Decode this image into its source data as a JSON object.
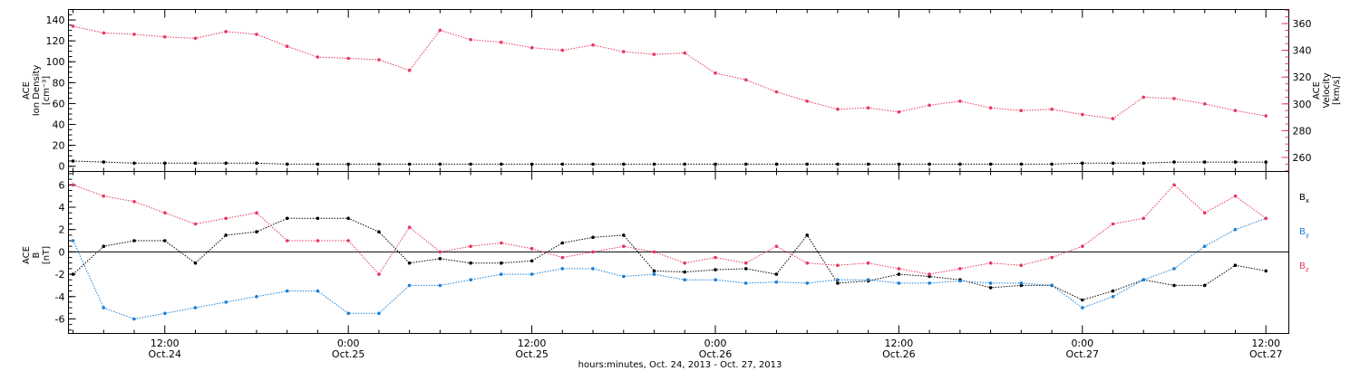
{
  "colors": {
    "black": "#000000",
    "pink": "#e8375f",
    "blue": "#1b7fd6"
  },
  "chart_data": [
    {
      "type": "scatter",
      "title": "",
      "x_unit": "hours since Oct.24 00:00 (2013)",
      "xlim": [
        5.7,
        85.5
      ],
      "ylabel_lines": [
        "ACE",
        "Ion Density",
        "[cm⁻³]"
      ],
      "ylim": [
        -5,
        150
      ],
      "yticks": [
        0,
        20,
        40,
        60,
        80,
        100,
        120,
        140
      ],
      "y2label_lines": [
        "ACE",
        "Velocity",
        "[km/s]"
      ],
      "y2lim": [
        249.5,
        370.5
      ],
      "y2ticks": [
        260,
        280,
        300,
        320,
        340,
        360
      ],
      "series": [
        {
          "name": "Ion Density",
          "axis": "left",
          "color": "#000000",
          "x": [
            6,
            8,
            10,
            12,
            14,
            16,
            18,
            20,
            22,
            24,
            26,
            28,
            30,
            32,
            34,
            36,
            38,
            40,
            42,
            44,
            46,
            48,
            50,
            52,
            54,
            56,
            58,
            60,
            62,
            64,
            66,
            68,
            70,
            72,
            74,
            76,
            78,
            80,
            82,
            84
          ],
          "y": [
            5,
            4,
            3,
            3,
            3,
            3,
            3,
            2,
            2,
            2,
            2,
            2,
            2,
            2,
            2,
            2,
            2,
            2,
            2,
            2,
            2,
            2,
            2,
            2,
            2,
            2,
            2,
            2,
            2,
            2,
            2,
            2,
            2,
            3,
            3,
            3,
            4,
            4,
            4,
            4
          ]
        },
        {
          "name": "Velocity",
          "axis": "right",
          "color": "#e8375f",
          "x": [
            6,
            8,
            10,
            12,
            14,
            16,
            18,
            20,
            22,
            24,
            26,
            28,
            30,
            32,
            34,
            36,
            38,
            40,
            42,
            44,
            46,
            48,
            50,
            52,
            54,
            56,
            58,
            60,
            62,
            64,
            66,
            68,
            70,
            72,
            74,
            76,
            78,
            80,
            82,
            84
          ],
          "y": [
            358,
            353,
            352,
            350,
            349,
            354,
            352,
            343,
            335,
            334,
            333,
            325,
            355,
            348,
            346,
            342,
            340,
            344,
            339,
            337,
            338,
            323,
            318,
            309,
            302,
            296,
            297,
            294,
            299,
            302,
            297,
            295,
            296,
            292,
            289,
            305,
            304,
            300,
            295,
            291
          ]
        }
      ]
    },
    {
      "type": "scatter",
      "title": "",
      "xlim": [
        5.7,
        85.5
      ],
      "ylabel_lines": [
        "ACE",
        "B",
        "[nT]"
      ],
      "ylim": [
        -7.3,
        7.2
      ],
      "yticks": [
        -6,
        -4,
        -2,
        0,
        2,
        4,
        6
      ],
      "zero_line": true,
      "legend": [
        "Bx",
        "By",
        "Bz"
      ],
      "legend_position": "right",
      "series": [
        {
          "name": "Bx",
          "color": "#000000",
          "x": [
            6,
            8,
            10,
            12,
            14,
            16,
            18,
            20,
            22,
            24,
            26,
            28,
            30,
            32,
            34,
            36,
            38,
            40,
            42,
            44,
            46,
            48,
            50,
            52,
            54,
            56,
            58,
            60,
            62,
            64,
            66,
            68,
            70,
            72,
            74,
            76,
            78,
            80,
            82,
            84
          ],
          "y": [
            -2,
            0.5,
            1,
            1,
            -1,
            1.5,
            1.8,
            3,
            3,
            3,
            1.8,
            -1,
            -0.6,
            -1,
            -1,
            -0.8,
            0.8,
            1.3,
            1.5,
            -1.7,
            -1.8,
            -1.6,
            -1.5,
            -2,
            1.5,
            -2.8,
            -2.6,
            -2,
            -2.2,
            -2.5,
            -3.2,
            -3,
            -3,
            -4.3,
            -3.5,
            -2.5,
            -3,
            -3,
            -1.2,
            -1.7
          ]
        },
        {
          "name": "By",
          "color": "#1b7fd6",
          "x": [
            6,
            8,
            10,
            12,
            14,
            16,
            18,
            20,
            22,
            24,
            26,
            28,
            30,
            32,
            34,
            36,
            38,
            40,
            42,
            44,
            46,
            48,
            50,
            52,
            54,
            56,
            58,
            60,
            62,
            64,
            66,
            68,
            70,
            72,
            74,
            76,
            78,
            80,
            82,
            84
          ],
          "y": [
            1,
            -5,
            -6,
            -5.5,
            -5,
            -4.5,
            -4,
            -3.5,
            -3.5,
            -5.5,
            -5.5,
            -3,
            -3,
            -2.5,
            -2,
            -2,
            -1.5,
            -1.5,
            -2.2,
            -2,
            -2.5,
            -2.5,
            -2.8,
            -2.7,
            -2.8,
            -2.5,
            -2.5,
            -2.8,
            -2.8,
            -2.6,
            -2.8,
            -2.8,
            -3,
            -5,
            -4,
            -2.5,
            -1.5,
            0.5,
            2,
            3
          ]
        },
        {
          "name": "Bz",
          "color": "#e8375f",
          "x": [
            6,
            8,
            10,
            12,
            14,
            16,
            18,
            20,
            22,
            24,
            26,
            28,
            30,
            32,
            34,
            36,
            38,
            40,
            42,
            44,
            46,
            48,
            50,
            52,
            54,
            56,
            58,
            60,
            62,
            64,
            66,
            68,
            70,
            72,
            74,
            76,
            78,
            80,
            82,
            84
          ],
          "y": [
            6,
            5,
            4.5,
            3.5,
            2.5,
            3,
            3.5,
            1,
            1,
            1,
            -2,
            2.2,
            0,
            0.5,
            0.8,
            0.3,
            -0.5,
            0,
            0.5,
            0,
            -1,
            -0.5,
            -1,
            0.5,
            -1,
            -1.2,
            -1,
            -1.5,
            -2,
            -1.5,
            -1,
            -1.2,
            -0.5,
            0.5,
            2.5,
            3,
            6,
            3.5,
            5,
            3
          ]
        }
      ]
    }
  ],
  "x_axis": {
    "ticks": [
      {
        "hour": 12,
        "time": "12:00",
        "day": "Oct.24"
      },
      {
        "hour": 24,
        "time": "0:00",
        "day": "Oct.25"
      },
      {
        "hour": 36,
        "time": "12:00",
        "day": "Oct.25"
      },
      {
        "hour": 48,
        "time": "0:00",
        "day": "Oct.26"
      },
      {
        "hour": 60,
        "time": "12:00",
        "day": "Oct.26"
      },
      {
        "hour": 72,
        "time": "0:00",
        "day": "Oct.27"
      },
      {
        "hour": 84,
        "time": "12:00",
        "day": "Oct.27"
      }
    ],
    "minor_step_hours": 2,
    "label": "hours:minutes, Oct. 24, 2013 - Oct. 27, 2013"
  },
  "legend_labels": {
    "bx": {
      "main": "B",
      "sub": "x"
    },
    "by": {
      "main": "B",
      "sub": "y"
    },
    "bz": {
      "main": "B",
      "sub": "z"
    }
  }
}
